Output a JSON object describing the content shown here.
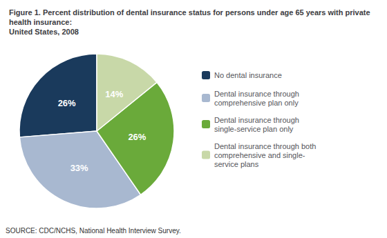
{
  "chart_data": {
    "type": "pie",
    "title": "Figure 1. Percent distribution of dental insurance status for persons under age 65 years with private health insurance:\nUnited States, 2008",
    "annotations": [
      "SOURCE: CDC/NCHS, National Health Interview Survey."
    ],
    "categories": [
      "No dental insurance",
      "Dental insurance through\ncomprehensive plan only",
      "Dental insurance through\nsingle-service plan only",
      "Dental insurance through both\ncomprehensive and single-\nservice plans"
    ],
    "values": [
      26,
      33,
      26,
      14
    ],
    "value_labels": [
      "26%",
      "33%",
      "26%",
      "14%"
    ],
    "colors": [
      "#1a3a5c",
      "#a8b8d0",
      "#6aaa3a",
      "#c8d8a8"
    ],
    "data_labels": true,
    "legend": "right"
  }
}
